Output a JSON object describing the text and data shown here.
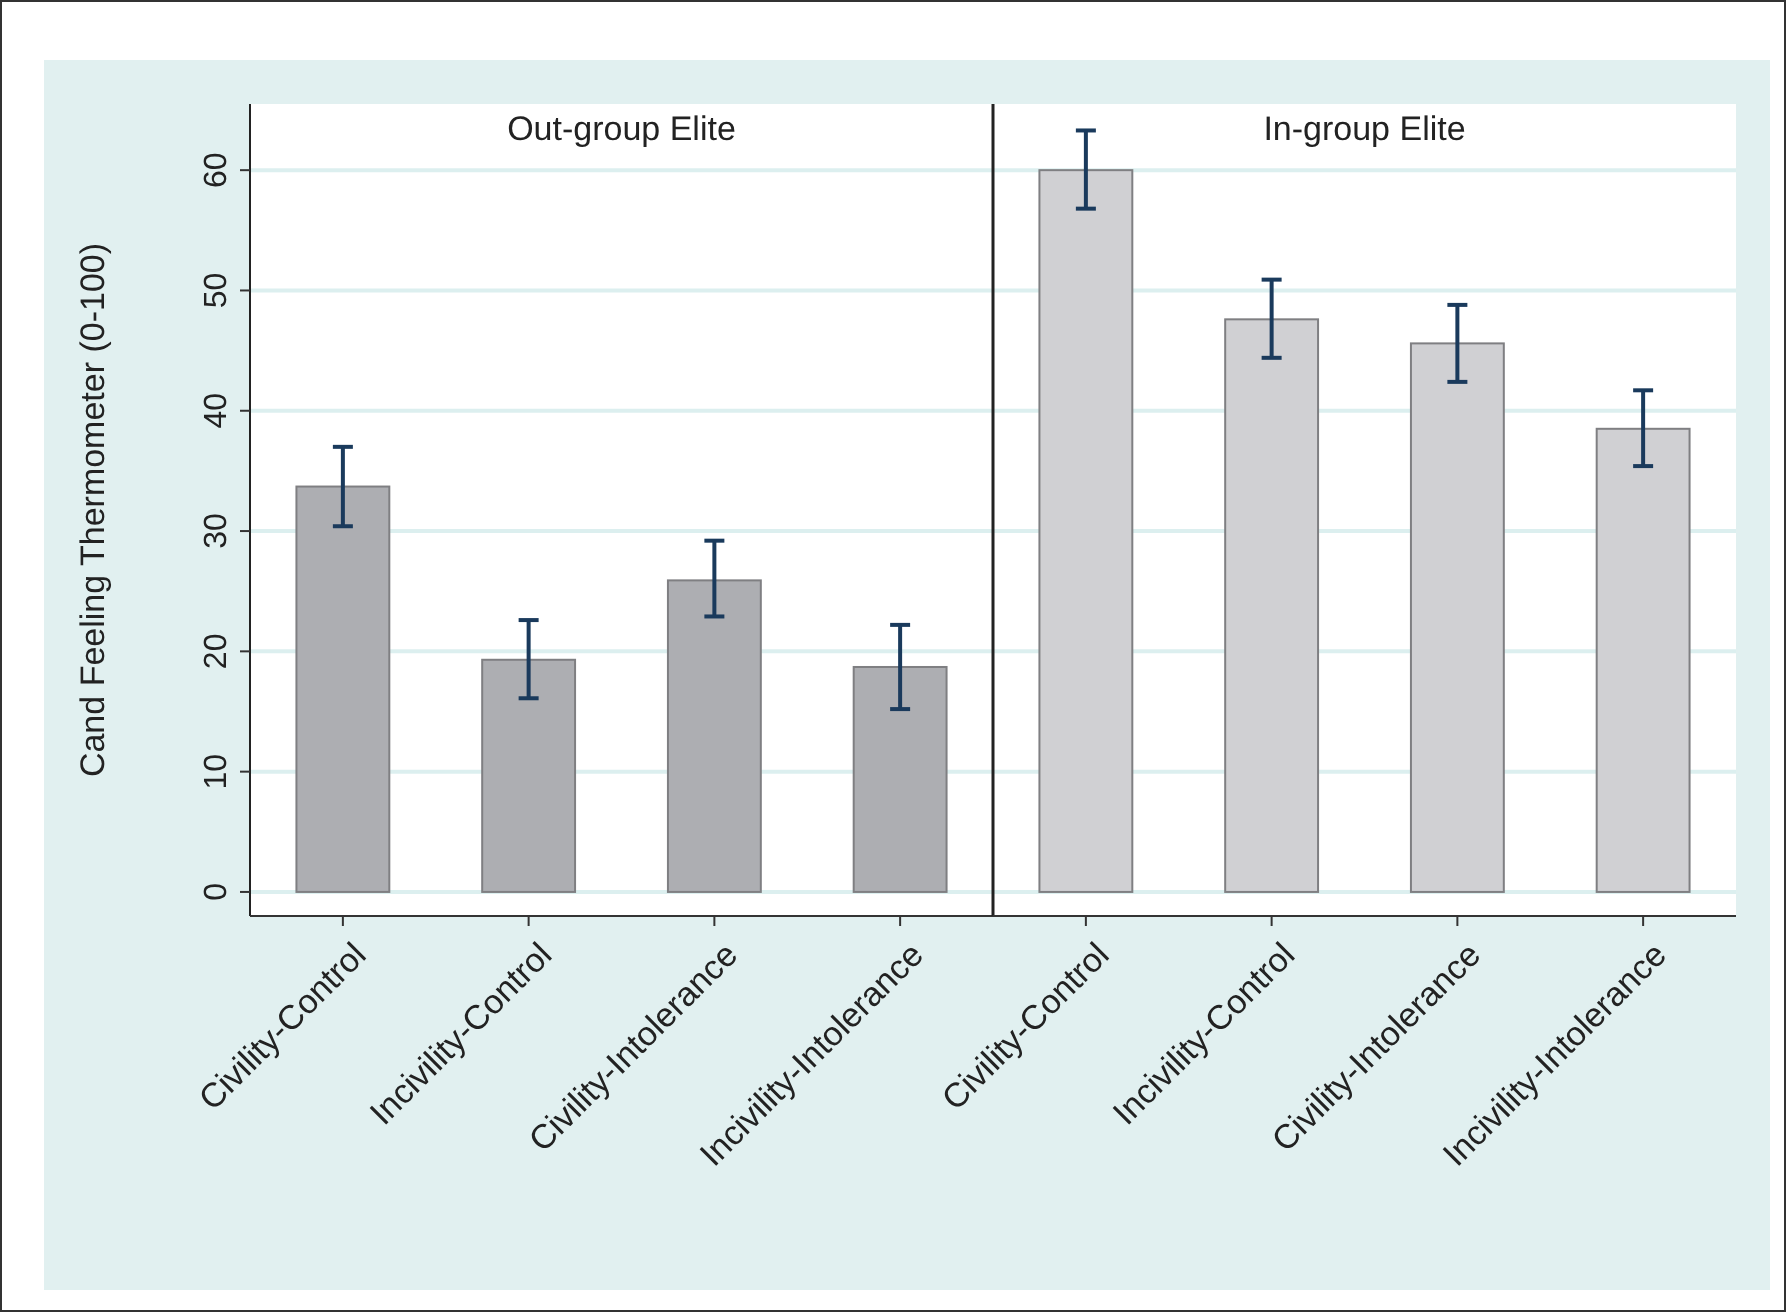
{
  "chart_data": [
    {
      "type": "bar",
      "ylabel": "Cand Feeling Thermometer (0-100)",
      "categories": [
        "Civility-Control",
        "Incivility-Control",
        "Civility-Intolerance",
        "Incivility-Intolerance"
      ],
      "values": [
        33.7,
        19.3,
        25.9,
        18.7
      ],
      "color": "#adaeb2",
      "errors": [
        [
          30.4,
          37.0
        ],
        [
          16.1,
          22.6
        ],
        [
          22.9,
          29.2
        ],
        [
          15.2,
          22.2
        ]
      ],
      "ylim": [
        -2,
        65.5
      ],
      "yticks": [
        0,
        10,
        20,
        30,
        40,
        50,
        60
      ],
      "grid": "y",
      "annotations": [
        "Out-group Elite"
      ]
    },
    {
      "type": "bar",
      "categories": [
        "Civility-Control",
        "Incivility-Control",
        "Civility-Intolerance",
        "Incivility-Intolerance"
      ],
      "values": [
        60.0,
        47.6,
        45.6,
        38.5
      ],
      "color": "#d0d0d3",
      "errors": [
        [
          56.8,
          63.3
        ],
        [
          44.4,
          50.9
        ],
        [
          42.4,
          48.8
        ],
        [
          35.4,
          41.7
        ]
      ],
      "ylim": [
        -2,
        65.5
      ],
      "yticks": [
        0,
        10,
        20,
        30,
        40,
        50,
        60
      ],
      "grid": "y",
      "tick_labels": "x",
      "annotations": [
        "In-group Elite"
      ]
    }
  ]
}
